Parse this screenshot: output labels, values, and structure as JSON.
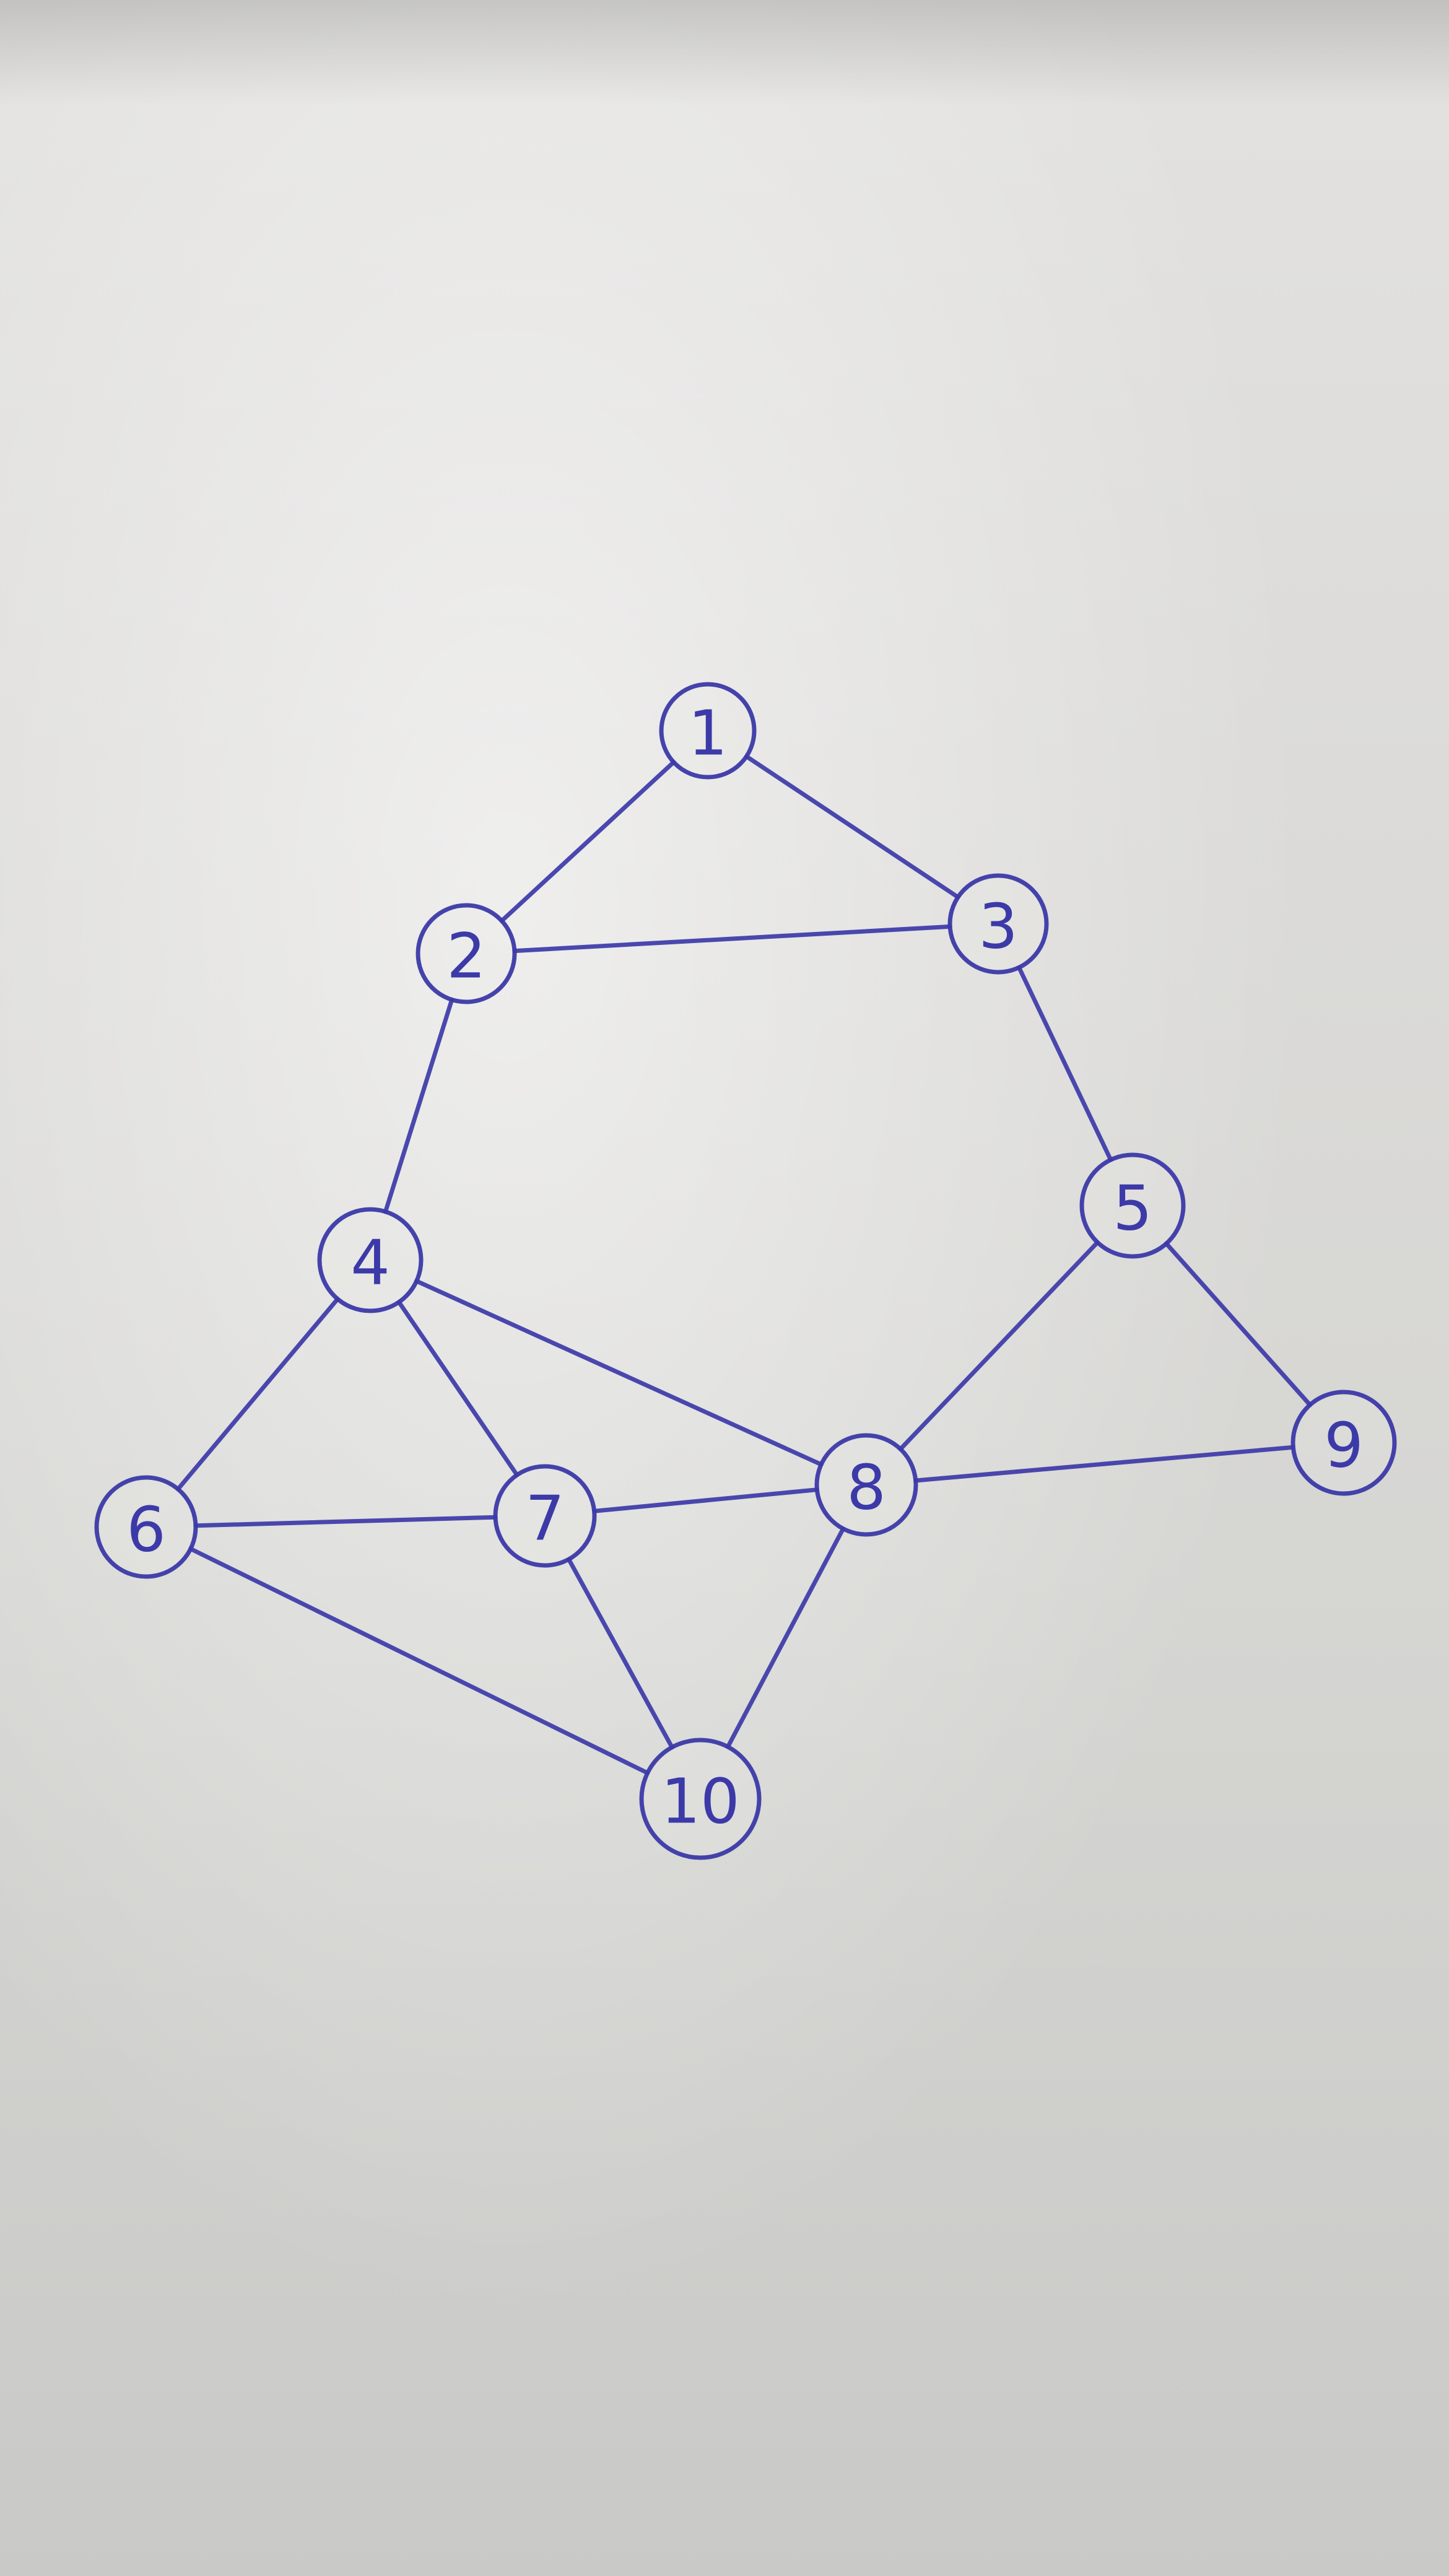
{
  "diagram": {
    "type": "undirected-graph",
    "ink_color": "#3c3aa8",
    "nodes": [
      {
        "id": "1",
        "label": "1"
      },
      {
        "id": "2",
        "label": "2"
      },
      {
        "id": "3",
        "label": "3"
      },
      {
        "id": "4",
        "label": "4"
      },
      {
        "id": "5",
        "label": "5"
      },
      {
        "id": "6",
        "label": "6"
      },
      {
        "id": "7",
        "label": "7"
      },
      {
        "id": "8",
        "label": "8"
      },
      {
        "id": "9",
        "label": "9"
      },
      {
        "id": "10",
        "label": "10"
      }
    ],
    "edges": [
      [
        "1",
        "2"
      ],
      [
        "1",
        "3"
      ],
      [
        "2",
        "3"
      ],
      [
        "2",
        "4"
      ],
      [
        "3",
        "5"
      ],
      [
        "4",
        "6"
      ],
      [
        "4",
        "7"
      ],
      [
        "4",
        "8"
      ],
      [
        "5",
        "8"
      ],
      [
        "5",
        "9"
      ],
      [
        "6",
        "7"
      ],
      [
        "6",
        "10"
      ],
      [
        "7",
        "8"
      ],
      [
        "7",
        "10"
      ],
      [
        "8",
        "9"
      ],
      [
        "8",
        "10"
      ]
    ]
  }
}
